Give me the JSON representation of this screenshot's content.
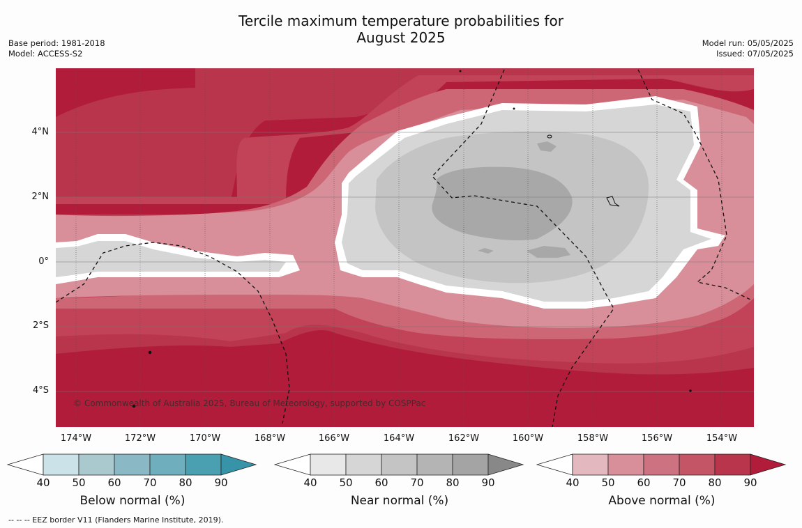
{
  "title_line1": "Tercile maximum temperature probabilities for",
  "title_line2": "August 2025",
  "base_period": "Base period: 1981-2018",
  "model": "Model: ACCESS-S2",
  "model_run": "Model run: 05/05/2025",
  "issued": "Issued: 07/05/2025",
  "copyright": "© Commonwealth of Australia 2025, Bureau of Meteorology, supported by COSPPac",
  "footnote": "--  --  -- EEZ border V11 (Flanders Marine Institute, 2019).",
  "lat_labels": [
    "4°N",
    "2°N",
    "0°",
    "2°S",
    "4°S"
  ],
  "lon_labels": [
    "174°W",
    "172°W",
    "170°W",
    "168°W",
    "166°W",
    "164°W",
    "162°W",
    "160°W",
    "158°W",
    "156°W",
    "154°W"
  ],
  "colorbars": [
    {
      "title": "Below normal (%)",
      "ticks": [
        "40",
        "50",
        "60",
        "70",
        "80",
        "90"
      ],
      "colors": [
        "#ffffff",
        "#cbe2e8",
        "#a9c9cf",
        "#8bb8c5",
        "#6eaebd",
        "#4a9fb0",
        "#3793a8"
      ]
    },
    {
      "title": "Near normal (%)",
      "ticks": [
        "40",
        "50",
        "60",
        "70",
        "80",
        "90"
      ],
      "colors": [
        "#ffffff",
        "#e8e8e8",
        "#d6d6d6",
        "#c4c4c4",
        "#b4b4b4",
        "#a4a4a4",
        "#888888"
      ]
    },
    {
      "title": "Above normal (%)",
      "ticks": [
        "40",
        "50",
        "60",
        "70",
        "80",
        "90"
      ],
      "colors": [
        "#ffffff",
        "#e3b8bf",
        "#d88f99",
        "#cc7280",
        "#c35566",
        "#b8354b",
        "#b11c3a"
      ]
    }
  ]
}
